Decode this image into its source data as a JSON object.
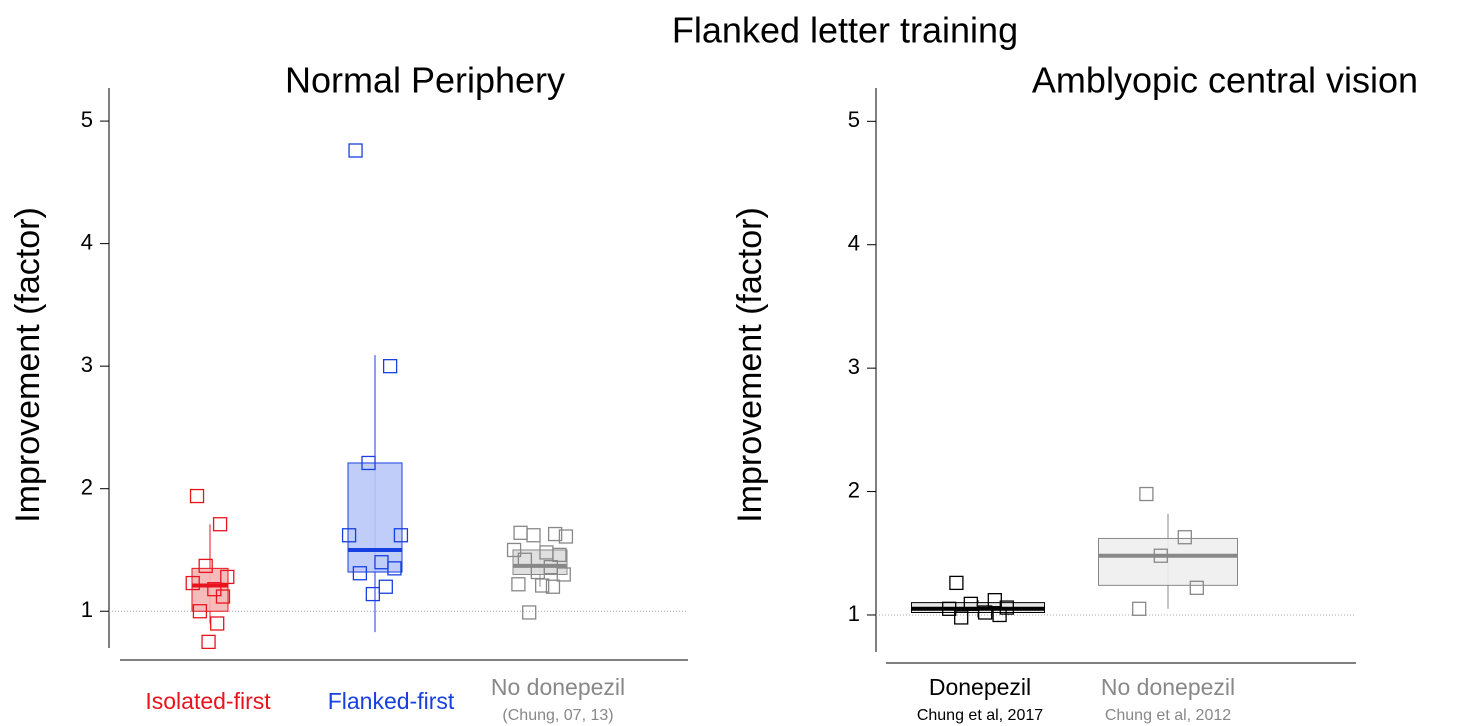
{
  "title": "Flanked letter training",
  "chart_data": [
    {
      "type": "box",
      "title": "Normal Periphery",
      "y_label": "Improvement (factor)",
      "categories": [
        "Isolated-first",
        "Flanked-first",
        "No donepezil"
      ],
      "category_notes": [
        null,
        null,
        "(Chung, 07, 13)"
      ],
      "ylim": [
        0.7,
        5.27
      ],
      "yticks": [
        1,
        2,
        3,
        4,
        5
      ],
      "refline": 1,
      "boxes": [
        {
          "color": "#e8141c",
          "fill": "#f5b5b5",
          "q1": 1.0,
          "median": 1.21,
          "q3": 1.35,
          "whislo": 0.9,
          "whishi": 1.71,
          "points": [
            1.94,
            1.71,
            1.37,
            1.28,
            1.23,
            1.18,
            1.12,
            1.0,
            0.9,
            0.75
          ]
        },
        {
          "color": "#1740e0",
          "fill": "#b8c8f7",
          "q1": 1.32,
          "median": 1.5,
          "q3": 2.21,
          "whislo": 0.83,
          "whishi": 3.09,
          "points": [
            4.76,
            3.0,
            2.21,
            1.62,
            1.62,
            1.4,
            1.35,
            1.31,
            1.2,
            1.14
          ]
        },
        {
          "color": "#888888",
          "fill": "#dddddd",
          "q1": 1.3,
          "median": 1.37,
          "q3": 1.5,
          "whislo": 1.2,
          "whishi": 1.6,
          "points": [
            1.64,
            1.63,
            1.62,
            1.61,
            1.5,
            1.48,
            1.46,
            1.42,
            1.36,
            1.32,
            1.3,
            1.22,
            1.21,
            1.2,
            0.99
          ]
        }
      ]
    },
    {
      "type": "box",
      "title": "Amblyopic central vision",
      "y_label": "Improvement (factor)",
      "categories": [
        "Donepezil",
        "No donepezil"
      ],
      "category_notes": [
        "Chung et al, 2017",
        "Chung et al, 2012"
      ],
      "ylim": [
        0.7,
        5.27
      ],
      "yticks": [
        1,
        2,
        3,
        4,
        5
      ],
      "refline": 1,
      "boxes": [
        {
          "color": "#000000",
          "fill": "#e6e6e6",
          "q1": 1.02,
          "median": 1.05,
          "q3": 1.1,
          "whislo": 0.98,
          "whishi": 1.12,
          "points": [
            1.26,
            1.12,
            1.09,
            1.06,
            1.05,
            1.02,
            1.0,
            0.98
          ]
        },
        {
          "color": "#888888",
          "fill": "#eeeeee",
          "q1": 1.24,
          "median": 1.48,
          "q3": 1.62,
          "whislo": 1.05,
          "whishi": 1.82,
          "points": [
            1.98,
            1.63,
            1.48,
            1.22,
            1.05
          ]
        }
      ]
    }
  ]
}
